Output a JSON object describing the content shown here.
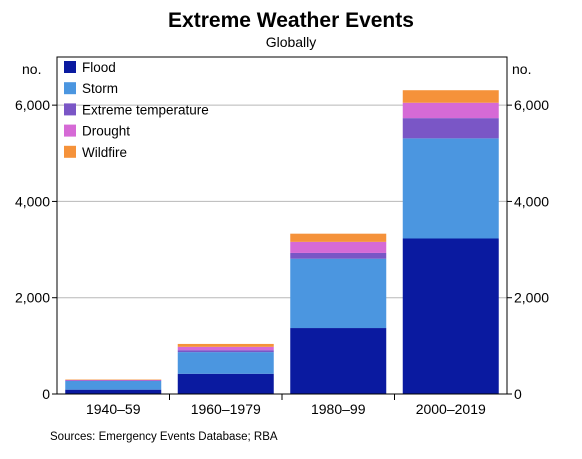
{
  "chart_data": {
    "type": "bar",
    "stacked": true,
    "title": "Extreme Weather Events",
    "subtitle": "Globally",
    "ylabel_left": "no.",
    "ylabel_right": "no.",
    "ylim": [
      0,
      7000
    ],
    "yticks": [
      0,
      2000,
      4000,
      6000
    ],
    "ytick_labels": [
      "0",
      "2,000",
      "4,000",
      "6,000"
    ],
    "grid": true,
    "legend_position": "top-left",
    "categories": [
      "1940–59",
      "1960–1979",
      "1980–99",
      "2000–2019"
    ],
    "series": [
      {
        "name": "Flood",
        "color": "#0a1aa0",
        "values": [
          90,
          420,
          1370,
          3230
        ]
      },
      {
        "name": "Storm",
        "color": "#4b96e0",
        "values": [
          180,
          450,
          1440,
          2080
        ]
      },
      {
        "name": "Extreme temperature",
        "color": "#7a56c6",
        "values": [
          10,
          40,
          120,
          420
        ]
      },
      {
        "name": "Drought",
        "color": "#d66ad6",
        "values": [
          10,
          70,
          230,
          320
        ]
      },
      {
        "name": "Wildfire",
        "color": "#f5923a",
        "values": [
          10,
          60,
          170,
          260
        ]
      }
    ],
    "source": "Sources: Emergency Events Database; RBA"
  }
}
